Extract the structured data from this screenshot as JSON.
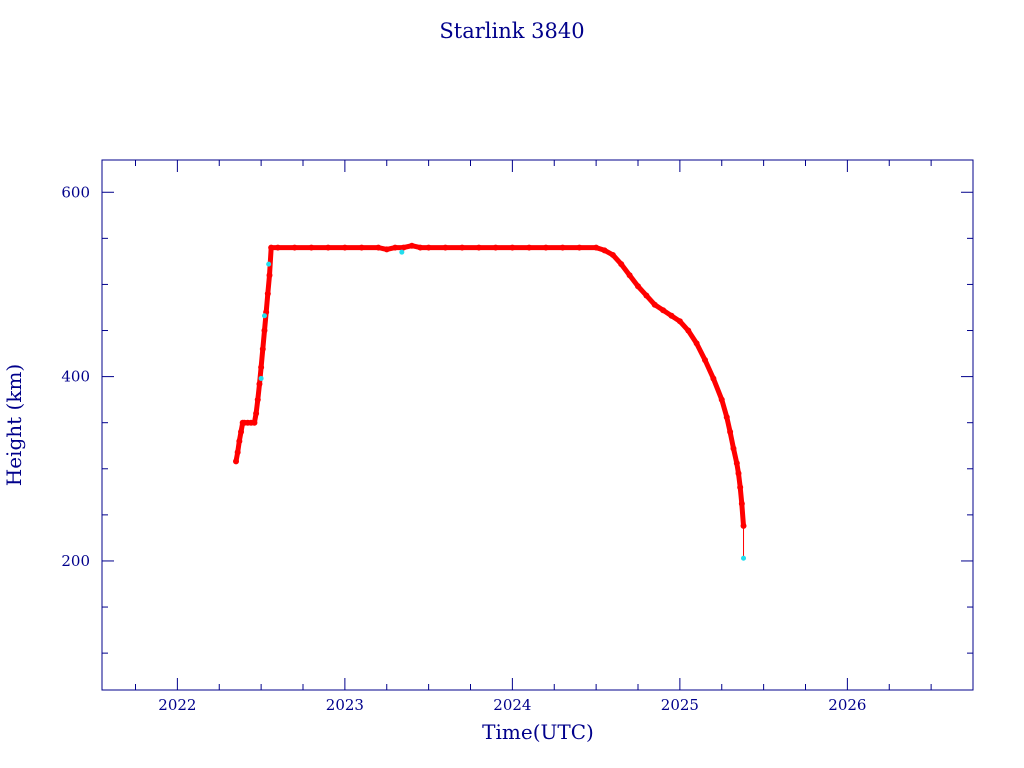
{
  "chart_data": {
    "type": "scatter",
    "title": "Starlink 3840",
    "xlabel": "Time(UTC)",
    "ylabel": "Height (km)",
    "xlim": [
      2021.55,
      2026.75
    ],
    "ylim": [
      60,
      635
    ],
    "xticks": [
      2022,
      2023,
      2024,
      2025,
      2026
    ],
    "xtick_labels": [
      "2022",
      "2023",
      "2024",
      "2025",
      "2026"
    ],
    "yticks": [
      200,
      400,
      600
    ],
    "ytick_labels": [
      "200",
      "400",
      "600"
    ],
    "grid": false,
    "colors": {
      "frame": "#00008b",
      "text": "#00008b",
      "series_main": "#ff0000",
      "series_outlier": "#22ddee"
    },
    "series": [
      {
        "role": "main",
        "x": [
          2022.35,
          2022.36,
          2022.37,
          2022.38,
          2022.39,
          2022.4,
          2022.42,
          2022.44,
          2022.46,
          2022.47,
          2022.48,
          2022.49,
          2022.5,
          2022.51,
          2022.52,
          2022.53,
          2022.54,
          2022.55,
          2022.56,
          2022.6,
          2022.7,
          2022.8,
          2022.9,
          2023.0,
          2023.1,
          2023.2,
          2023.25,
          2023.3,
          2023.35,
          2023.4,
          2023.45,
          2023.5,
          2023.6,
          2023.7,
          2023.8,
          2023.9,
          2024.0,
          2024.1,
          2024.2,
          2024.3,
          2024.4,
          2024.5,
          2024.55,
          2024.6,
          2024.65,
          2024.7,
          2024.75,
          2024.8,
          2024.85,
          2024.9,
          2024.95,
          2025.0,
          2025.05,
          2025.1,
          2025.15,
          2025.2,
          2025.25,
          2025.28,
          2025.3,
          2025.32,
          2025.34,
          2025.35,
          2025.36,
          2025.37,
          2025.38
        ],
        "y": [
          308,
          318,
          330,
          340,
          350,
          350,
          350,
          350,
          350,
          360,
          375,
          392,
          410,
          430,
          450,
          470,
          490,
          510,
          540,
          540,
          540,
          540,
          540,
          540,
          540,
          540,
          538,
          540,
          540,
          542,
          540,
          540,
          540,
          540,
          540,
          540,
          540,
          540,
          540,
          540,
          540,
          540,
          537,
          532,
          522,
          510,
          498,
          488,
          478,
          472,
          466,
          460,
          450,
          436,
          418,
          398,
          375,
          356,
          340,
          322,
          306,
          295,
          280,
          262,
          238
        ]
      },
      {
        "role": "outlier",
        "x": [
          2022.5,
          2022.52,
          2022.545,
          2023.34,
          2025.38
        ],
        "y": [
          398,
          466,
          522,
          535,
          203
        ]
      }
    ]
  }
}
